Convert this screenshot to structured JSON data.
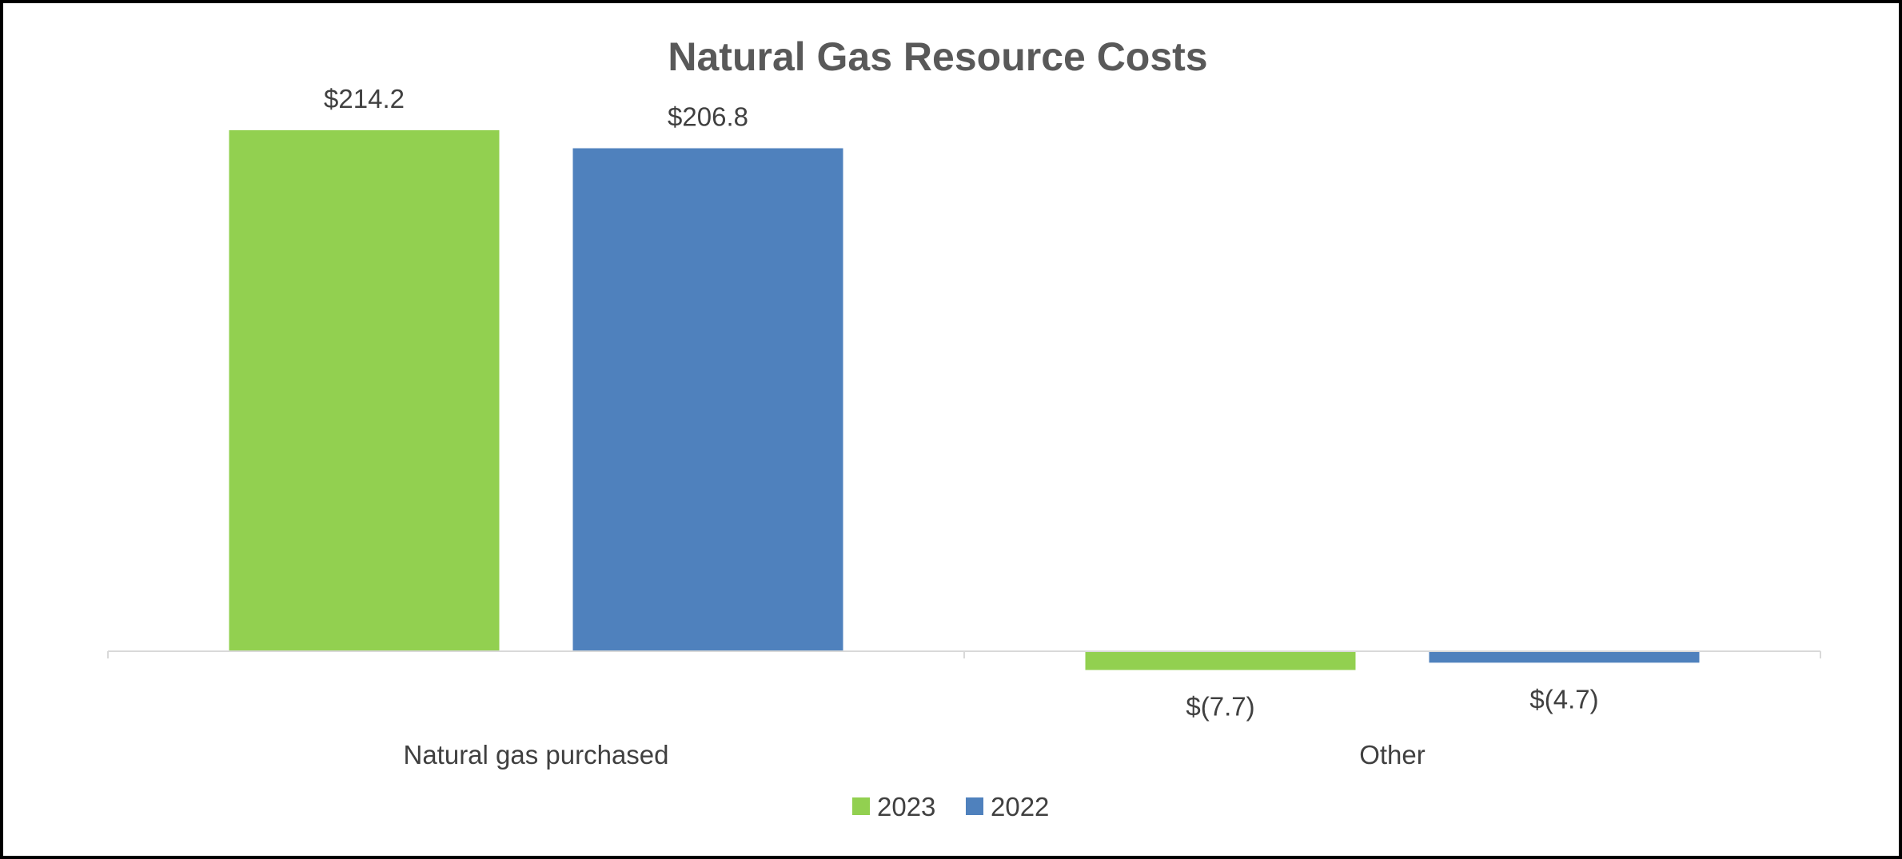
{
  "chart_data": {
    "type": "bar",
    "title": "Natural Gas Resource Costs",
    "categories": [
      "Natural gas purchased",
      "Other"
    ],
    "series": [
      {
        "name": "2023",
        "color": "#92D050",
        "values": [
          214.2,
          -7.7
        ],
        "labels": [
          "$214.2",
          "$(7.7)"
        ]
      },
      {
        "name": "2022",
        "color": "#4F81BD",
        "values": [
          206.8,
          -4.7
        ],
        "labels": [
          "$206.8",
          "$(4.7)"
        ]
      }
    ],
    "ylim": [
      -10,
      220
    ],
    "grid": false,
    "legend": "bottom"
  }
}
